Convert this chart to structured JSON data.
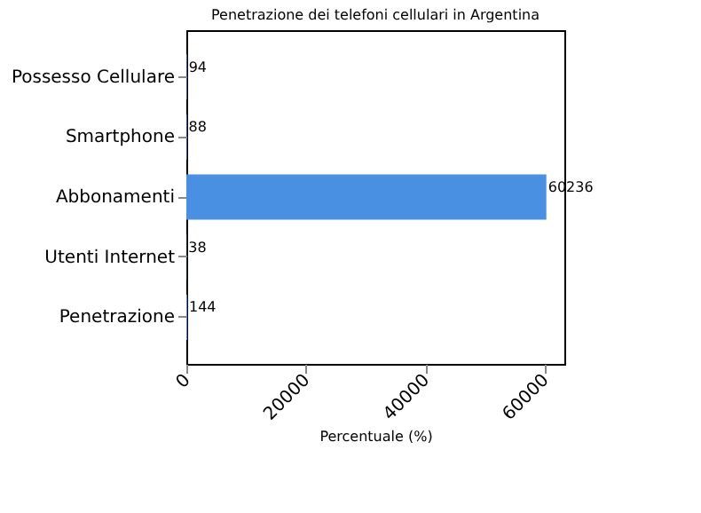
{
  "chart_data": {
    "type": "bar",
    "orientation": "horizontal",
    "title": "Penetrazione dei telefoni cellulari in Argentina",
    "xlabel": "Percentuale (%)",
    "categories": [
      "Possesso Cellulare",
      "Smartphone",
      "Abbonamenti",
      "Utenti Internet",
      "Penetrazione"
    ],
    "values": [
      94,
      88,
      60236,
      38,
      144
    ],
    "color": "#4a90e2",
    "data_labels": true,
    "xlim": [
      0,
      63250
    ],
    "xticks": [
      0,
      20000,
      40000,
      60000
    ],
    "grid": false
  }
}
